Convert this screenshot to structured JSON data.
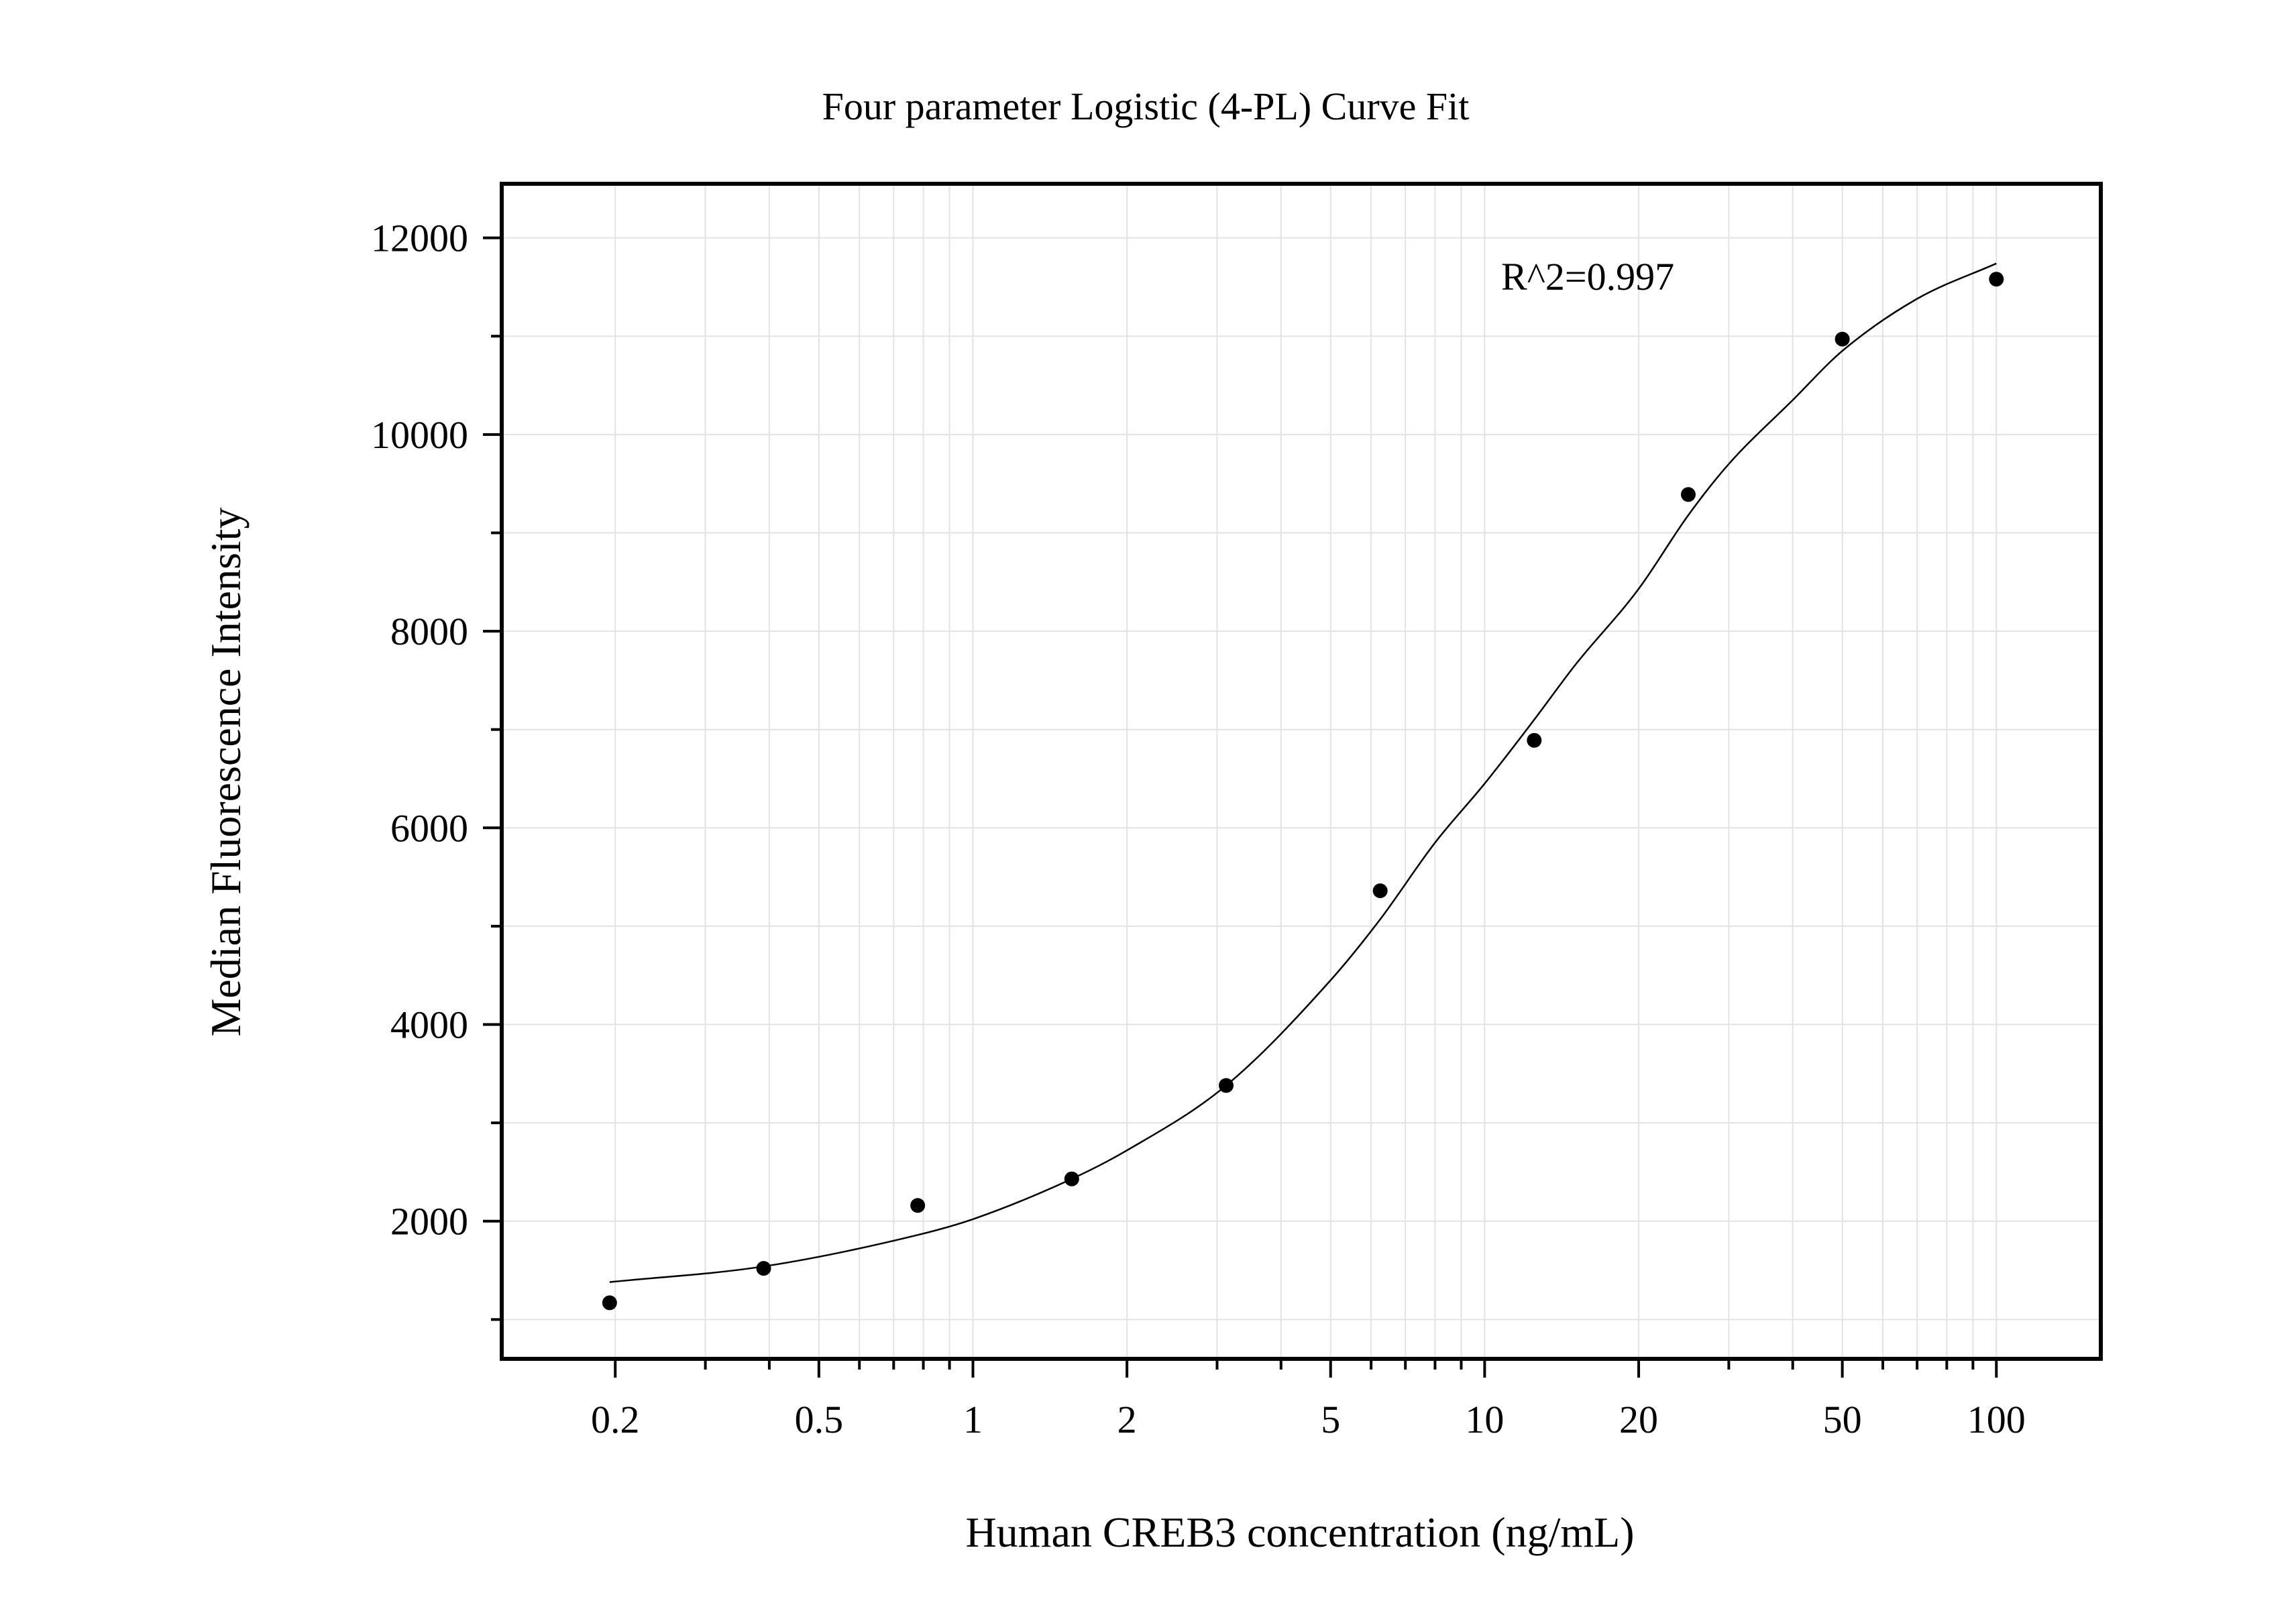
{
  "chart_data": {
    "type": "scatter",
    "title": "Four parameter Logistic (4-PL) Curve Fit",
    "xlabel": "Human CREB3 concentration (ng/mL)",
    "ylabel": "Median Fluorescence Intensity",
    "x_scale": "log",
    "xlim": [
      0.12,
      160
    ],
    "ylim": [
      600,
      12550
    ],
    "x_ticks": [
      0.2,
      0.5,
      1,
      2,
      5,
      10,
      20,
      50,
      100
    ],
    "x_tick_labels": [
      "0.2",
      "0.5",
      "1",
      "2",
      "5",
      "10",
      "20",
      "50",
      "100"
    ],
    "y_ticks": [
      2000,
      4000,
      6000,
      8000,
      10000,
      12000
    ],
    "y_tick_labels": [
      "2000",
      "4000",
      "6000",
      "8000",
      "10000",
      "12000"
    ],
    "grid": true,
    "annotation": "R^2=0.997",
    "series": [
      {
        "kind": "points",
        "x": [
          0.195,
          0.39,
          0.78,
          1.56,
          3.125,
          6.25,
          12.5,
          25,
          50,
          100
        ],
        "y": [
          1170,
          1520,
          2160,
          2430,
          3380,
          5360,
          6890,
          9390,
          10970,
          11580
        ]
      },
      {
        "kind": "fit-curve",
        "x": [
          0.195,
          0.39,
          0.78,
          1.0,
          1.56,
          2.0,
          3.125,
          5.0,
          6.25,
          8.0,
          10.0,
          12.5,
          15.0,
          20.0,
          25.0,
          30.0,
          40.0,
          50.0,
          70.0,
          100.0
        ],
        "y": [
          1380,
          1540,
          1860,
          2020,
          2430,
          2720,
          3380,
          4450,
          5070,
          5850,
          6450,
          7100,
          7650,
          8430,
          9180,
          9700,
          10350,
          10850,
          11380,
          11740
        ]
      }
    ],
    "colors": {
      "points": "#000000",
      "curve": "#000000",
      "grid": "#e3e3e3",
      "frame": "#000000"
    }
  }
}
